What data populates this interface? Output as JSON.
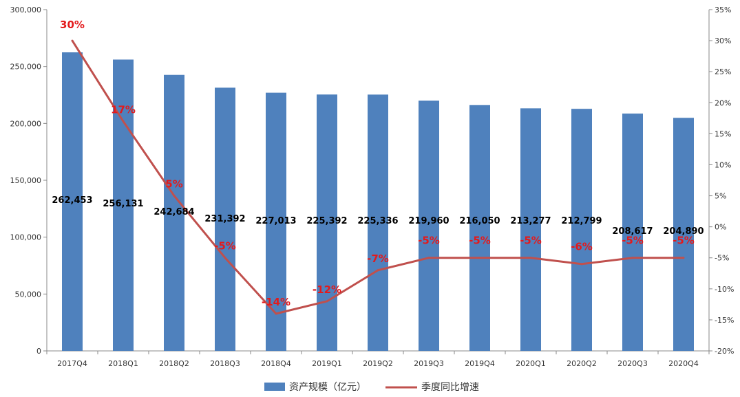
{
  "chart_data": {
    "type": "bar",
    "categories": [
      "2017Q4",
      "2018Q1",
      "2018Q2",
      "2018Q3",
      "2018Q4",
      "2019Q1",
      "2019Q2",
      "2019Q3",
      "2019Q4",
      "2020Q1",
      "2020Q2",
      "2020Q3",
      "2020Q4"
    ],
    "series": [
      {
        "name": "资产规模（亿元）",
        "type": "bar",
        "axis": "left",
        "values": [
          262453,
          256131,
          242684,
          231392,
          227013,
          225392,
          225336,
          219960,
          216050,
          213277,
          212799,
          208617,
          204890
        ],
        "labels": [
          "262,453",
          "256,131",
          "242,684",
          "231,392",
          "227,013",
          "225,392",
          "225,336",
          "219,960",
          "216,050",
          "213,277",
          "212,799",
          "208,617",
          "204,890"
        ]
      },
      {
        "name": "季度同比增速",
        "type": "line",
        "axis": "right",
        "values": [
          30,
          17,
          5,
          -5,
          -14,
          -12,
          -7,
          -5,
          -5,
          -5,
          -6,
          -5,
          -5
        ],
        "labels": [
          "30%",
          "17%",
          "5%",
          "-5%",
          "-14%",
          "-12%",
          "-7%",
          "-5%",
          "-5%",
          "-5%",
          "-6%",
          "-5%",
          "-5%"
        ]
      }
    ],
    "y_left": {
      "range": [
        0,
        300000
      ],
      "ticks": [
        "0",
        "50,000",
        "100,000",
        "150,000",
        "200,000",
        "250,000",
        "300,000"
      ]
    },
    "y_right": {
      "range": [
        -20,
        35
      ],
      "ticks": [
        "-20%",
        "-15%",
        "-10%",
        "-5%",
        "0%",
        "5%",
        "10%",
        "15%",
        "20%",
        "25%",
        "30%",
        "35%"
      ]
    },
    "grid": false,
    "legend": "bottom",
    "colors": {
      "bar": "#4f81bd",
      "line": "#c0504d",
      "line_label": "#e31a1c"
    }
  }
}
